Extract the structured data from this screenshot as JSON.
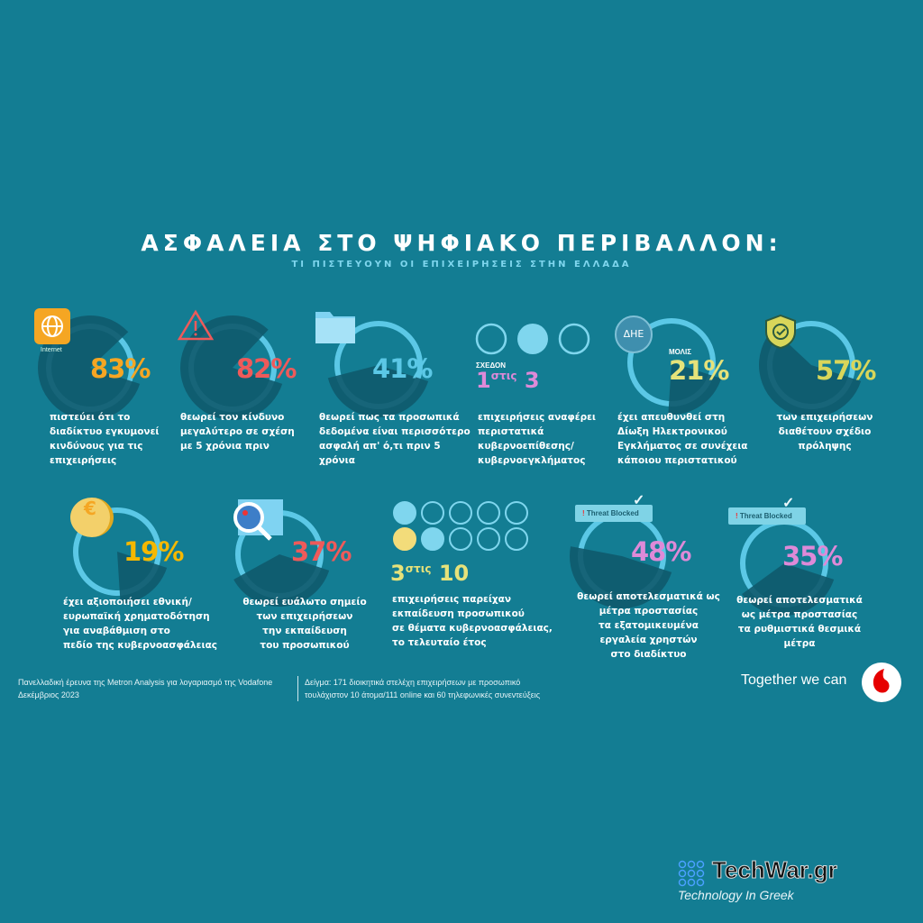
{
  "header": {
    "title": "ΑΣΦΑΛΕΙΑ ΣΤΟ ΨΗΦΙΑΚΟ ΠΕΡΙΒΑΛΛΟΝ:",
    "subtitle": "ΤΙ ΠΙΣΤΕΥΟΥΝ ΟΙ ΕΠΙΧΕΙΡΗΣΕΙΣ ΣΤΗΝ ΕΛΛΑΔΑ"
  },
  "colors": {
    "background": "#137d93",
    "ring": "#5bc8e6",
    "wedge": "#0f5a6d",
    "orange": "#f5a623",
    "red": "#ee5a5a",
    "blue": "#5bc8e6",
    "pink": "#de8ad8",
    "yellow": "#e6e27a",
    "gold": "#f5b800"
  },
  "stats": [
    {
      "value": "83%",
      "percent": 83,
      "color": "#f5a623",
      "icon": "globe-icon",
      "icon_label": "Internet",
      "text": "πιστεύει ότι το\nδιαδίκτυο εγκυμονεί\nκινδύνους για τις\nεπιχειρήσεις"
    },
    {
      "value": "82%",
      "percent": 82,
      "color": "#ee5a5a",
      "icon": "warning-icon",
      "text": "θεωρεί τον κίνδυνο\nμεγαλύτερο σε σχέση\nμε 5 χρόνια πριν"
    },
    {
      "value": "41%",
      "percent": 41,
      "color": "#5bc8e6",
      "icon": "folder-icon",
      "text": "θεωρεί πως τα προσωπικά\nδεδομένα είναι περισσότερο\nασφαλή απ' ό,τι πριν 5\nχρόνια"
    },
    {
      "prefix": "ΣΧΕΔΟΝ",
      "num": "1",
      "mid": "στις",
      "den": "3",
      "color": "#de8ad8",
      "icon": "circles-icon",
      "text": "επιχειρήσεις αναφέρει\nπεριστατικά\nκυβερνοεπίθεσης/\nκυβερνοεγκλήματος"
    },
    {
      "prefix": "ΜΟΛΙΣ",
      "value": "21%",
      "percent": 21,
      "color": "#e6e27a",
      "icon": "badge-icon",
      "icon_label": "ΔΗΕ",
      "text": "έχει απευθυνθεί στη\nΔίωξη Ηλεκτρονικού\nΕγκλήματος σε συνέχεια\nκάποιου περιστατικού"
    },
    {
      "value": "57%",
      "percent": 57,
      "color": "#d8d65a",
      "icon": "shield-check-icon",
      "text": "των επιχειρήσεων\nδιαθέτουν σχέδιο\nπρόληψης"
    },
    {
      "value": "19%",
      "percent": 19,
      "color": "#f5b800",
      "icon": "coin-icon",
      "icon_label": "€",
      "text": " έχει αξιοποιήσει εθνική/\nευρωπαϊκή χρηματοδότηση\nγια αναβάθμιση στο\nπεδίο της κυβερνοασφάλειας"
    },
    {
      "value": "37%",
      "percent": 37,
      "color": "#ee5a5a",
      "icon": "magnifier-icon",
      "text": "θεωρεί ευάλωτο σημείο\nτων επιχειρήσεων\nτην εκπαίδευση\nτου προσωπικού"
    },
    {
      "num": "3",
      "mid": "στις",
      "den": "10",
      "color": "#e6e27a",
      "icon": "circles-grid-icon",
      "text": "επιχειρήσεις παρείχαν\nεκπαίδευση προσωπικού\nσε θέματα κυβερνοασφάλειας,\nτο τελευταίο έτος"
    },
    {
      "value": "48%",
      "percent": 48,
      "color": "#de8ad8",
      "icon": "threat-blocked-icon",
      "icon_label": "Threat Blocked",
      "text": "θεωρεί αποτελεσματικά ως\nμέτρα προστασίας\nτα εξατομικευμένα\nεργαλεία χρηστών\nστο διαδίκτυο"
    },
    {
      "value": "35%",
      "percent": 35,
      "color": "#de8ad8",
      "icon": "threat-blocked-icon",
      "icon_label": "Threat Blocked",
      "text": "θεωρεί αποτελεσματικά\nως μέτρα προστασίας\nτα ρυθμιστικά θεσμικά\nμέτρα"
    }
  ],
  "footer": {
    "source": "Πανελλαδική έρευνα της Metron Analysis για λογαριασμό της Vodafone\nΔεκέμβριος 2023",
    "sample": "Δείγμα: 171 διοικητικά στελέχη επιχειρήσεων με προσωπικό\nτουλάχιστον 10 άτομα/111 online και 60 τηλεφωνικές συνεντεύξεις",
    "slogan": "Together we can"
  },
  "watermark": {
    "brand": "TechWar.gr",
    "tagline": "Technology In Greek"
  }
}
